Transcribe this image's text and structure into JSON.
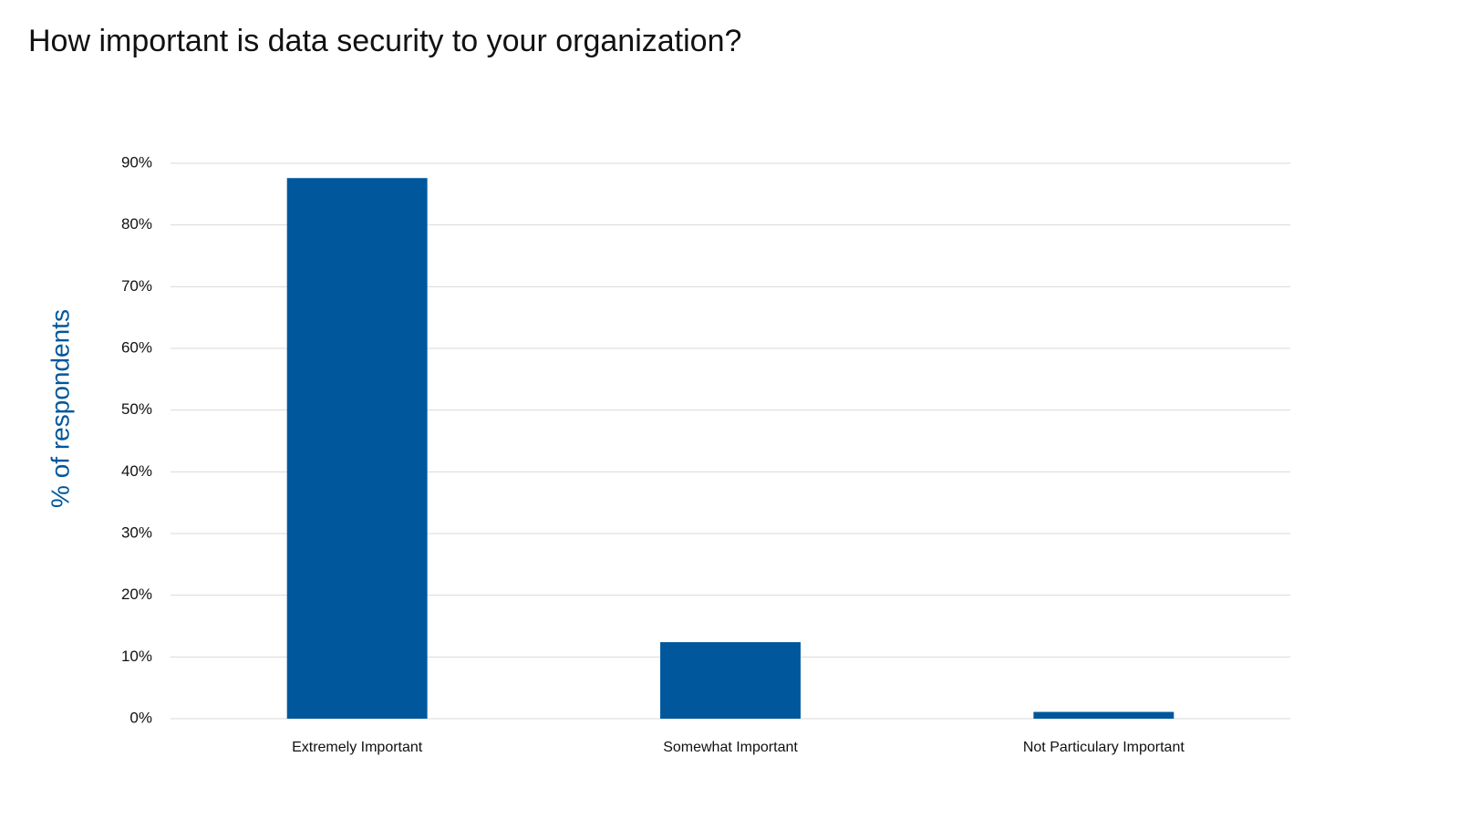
{
  "chart_data": {
    "type": "bar",
    "title": "How important is data security to your organization?",
    "y_label": "% of respondents",
    "categories": [
      "Extremely Important",
      "Somewhat Important",
      "Not Particulary Important"
    ],
    "values": [
      87.6,
      12.4,
      1.1
    ],
    "color": "#00579b",
    "ylim": [
      0,
      90
    ],
    "yticks": [
      {
        "value": 0,
        "label": "0%"
      },
      {
        "value": 10,
        "label": "10%"
      },
      {
        "value": 20,
        "label": "20%"
      },
      {
        "value": 30,
        "label": "30%"
      },
      {
        "value": 40,
        "label": "40%"
      },
      {
        "value": 50,
        "label": "50%"
      },
      {
        "value": 60,
        "label": "60%"
      },
      {
        "value": 70,
        "label": "70%"
      },
      {
        "value": 80,
        "label": "80%"
      },
      {
        "value": 90,
        "label": "90%"
      }
    ],
    "grid": true
  }
}
